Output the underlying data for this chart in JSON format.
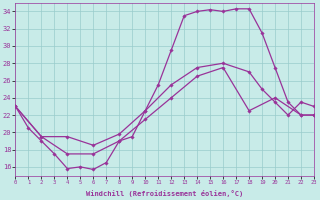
{
  "xlabel": "Windchill (Refroidissement éolien,°C)",
  "bg_color": "#c8ebe8",
  "line_color": "#993399",
  "grid_color": "#99cccc",
  "xlim": [
    0,
    23
  ],
  "ylim": [
    15,
    35
  ],
  "yticks": [
    16,
    18,
    20,
    22,
    24,
    26,
    28,
    30,
    32,
    34
  ],
  "xticks": [
    0,
    1,
    2,
    3,
    4,
    5,
    6,
    7,
    8,
    9,
    10,
    11,
    12,
    13,
    14,
    15,
    16,
    17,
    18,
    19,
    20,
    21,
    22,
    23
  ],
  "line1_x": [
    0,
    1,
    2,
    3,
    4,
    5,
    6,
    7,
    8,
    9,
    10,
    11,
    12,
    13,
    14,
    15,
    16,
    17,
    18,
    19,
    20,
    21,
    22,
    23
  ],
  "line1_y": [
    23,
    20.5,
    19,
    17.5,
    15.8,
    16.0,
    15.7,
    16.5,
    19.0,
    19.5,
    22.5,
    25.5,
    29.5,
    33.5,
    34.0,
    34.2,
    34.0,
    34.3,
    34.3,
    31.5,
    27.5,
    23.5,
    22.0,
    22.0
  ],
  "line2_x": [
    0,
    2,
    4,
    6,
    8,
    10,
    12,
    14,
    16,
    18,
    19,
    20,
    21,
    22,
    23
  ],
  "line2_y": [
    23,
    19.5,
    19.5,
    18.5,
    19.8,
    22.5,
    25.5,
    27.5,
    28.0,
    27.0,
    25.0,
    23.5,
    22.0,
    23.5,
    23.0
  ],
  "line3_x": [
    0,
    2,
    4,
    6,
    8,
    10,
    12,
    14,
    16,
    18,
    20,
    22,
    23
  ],
  "line3_y": [
    23,
    19.5,
    17.5,
    17.5,
    19.0,
    21.5,
    24.0,
    26.5,
    27.5,
    22.5,
    24.0,
    22.0,
    22.0
  ]
}
